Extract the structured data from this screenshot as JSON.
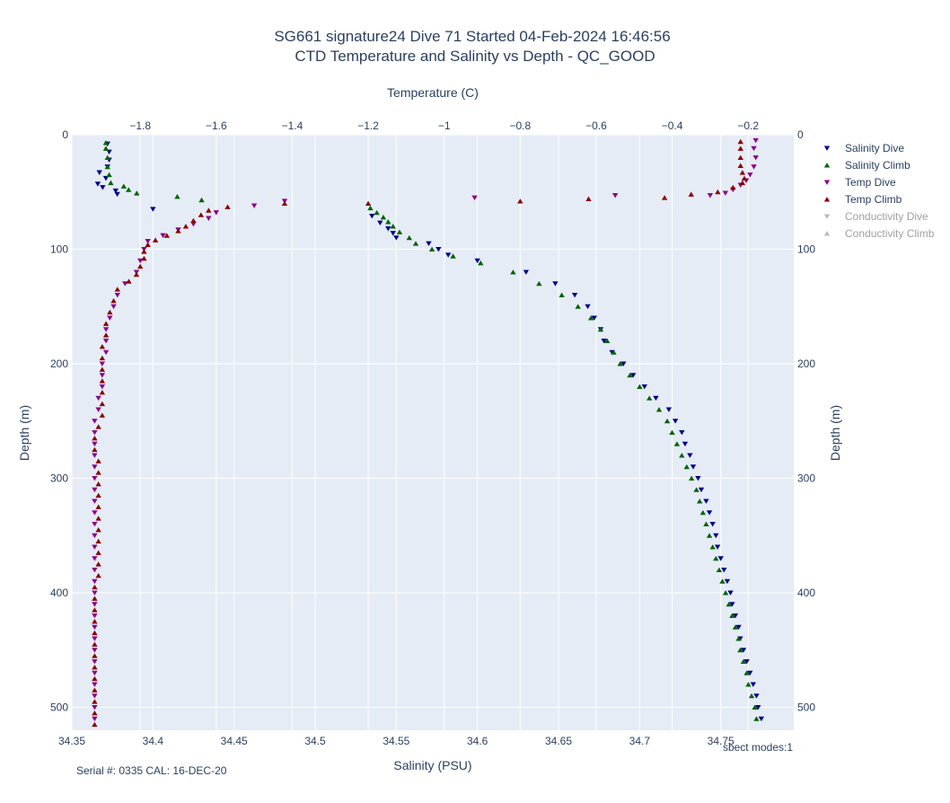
{
  "chart_data": {
    "type": "scatter",
    "title_line1": "SG661 signature24 Dive 71 Started 04-Feb-2024 16:46:56",
    "title_line2": "CTD Temperature and Salinity vs Depth - QC_GOOD",
    "xlabel_top": "Temperature (C)",
    "xlabel_bottom": "Salinity (PSU)",
    "ylabel_left": "Depth (m)",
    "ylabel_right": "Depth (m)",
    "xlim_bottom": [
      34.35,
      34.795
    ],
    "xlim_top": [
      -1.98,
      -0.08
    ],
    "ylim": [
      520,
      0
    ],
    "xticks_bottom": [
      "34.35",
      "34.4",
      "34.45",
      "34.5",
      "34.55",
      "34.6",
      "34.65",
      "34.7",
      "34.75"
    ],
    "xticks_top": [
      "−1.8",
      "−1.6",
      "−1.4",
      "−1.2",
      "−1",
      "−0.8",
      "−0.6",
      "−0.4",
      "−0.2"
    ],
    "yticks_left": [
      "0",
      "100",
      "200",
      "300",
      "400",
      "500"
    ],
    "yticks_right": [
      "0",
      "100",
      "200",
      "300",
      "400",
      "500"
    ],
    "grid": true,
    "legend_position": "right",
    "series": [
      {
        "name": "Salinity Dive",
        "axis": "salinity",
        "marker": "triangle-down",
        "color": "#00008b",
        "visible": true,
        "points": [
          [
            34.372,
            8
          ],
          [
            34.373,
            15
          ],
          [
            34.373,
            22
          ],
          [
            34.372,
            28
          ],
          [
            34.367,
            33
          ],
          [
            34.371,
            38
          ],
          [
            34.366,
            43
          ],
          [
            34.369,
            46
          ],
          [
            34.377,
            49
          ],
          [
            34.378,
            52
          ],
          [
            34.4,
            65
          ],
          [
            34.535,
            71
          ],
          [
            34.54,
            77
          ],
          [
            34.545,
            82
          ],
          [
            34.548,
            86
          ],
          [
            34.55,
            90
          ],
          [
            34.57,
            95
          ],
          [
            34.576,
            100
          ],
          [
            34.582,
            105
          ],
          [
            34.6,
            110
          ],
          [
            34.63,
            120
          ],
          [
            34.648,
            130
          ],
          [
            34.66,
            140
          ],
          [
            34.668,
            150
          ],
          [
            34.672,
            160
          ],
          [
            34.676,
            170
          ],
          [
            34.678,
            180
          ],
          [
            34.683,
            190
          ],
          [
            34.69,
            200
          ],
          [
            34.696,
            210
          ],
          [
            34.703,
            220
          ],
          [
            34.71,
            230
          ],
          [
            34.718,
            240
          ],
          [
            34.722,
            250
          ],
          [
            34.726,
            260
          ],
          [
            34.728,
            270
          ],
          [
            34.731,
            280
          ],
          [
            34.733,
            290
          ],
          [
            34.736,
            300
          ],
          [
            34.738,
            310
          ],
          [
            34.741,
            320
          ],
          [
            34.743,
            330
          ],
          [
            34.745,
            340
          ],
          [
            34.747,
            350
          ],
          [
            34.748,
            360
          ],
          [
            34.75,
            370
          ],
          [
            34.752,
            380
          ],
          [
            34.754,
            390
          ],
          [
            34.756,
            400
          ],
          [
            34.757,
            410
          ],
          [
            34.759,
            420
          ],
          [
            34.761,
            430
          ],
          [
            34.762,
            440
          ],
          [
            34.764,
            450
          ],
          [
            34.766,
            460
          ],
          [
            34.768,
            470
          ],
          [
            34.77,
            480
          ],
          [
            34.772,
            490
          ],
          [
            34.773,
            500
          ],
          [
            34.775,
            510
          ]
        ]
      },
      {
        "name": "Salinity Climb",
        "axis": "salinity",
        "marker": "triangle-up",
        "color": "#006400",
        "visible": true,
        "points": [
          [
            34.772,
            510
          ],
          [
            34.771,
            500
          ],
          [
            34.769,
            490
          ],
          [
            34.767,
            480
          ],
          [
            34.766,
            470
          ],
          [
            34.764,
            460
          ],
          [
            34.762,
            450
          ],
          [
            34.761,
            440
          ],
          [
            34.759,
            430
          ],
          [
            34.757,
            420
          ],
          [
            34.755,
            410
          ],
          [
            34.753,
            400
          ],
          [
            34.751,
            390
          ],
          [
            34.749,
            380
          ],
          [
            34.747,
            370
          ],
          [
            34.745,
            360
          ],
          [
            34.743,
            350
          ],
          [
            34.741,
            340
          ],
          [
            34.739,
            330
          ],
          [
            34.737,
            320
          ],
          [
            34.735,
            310
          ],
          [
            34.732,
            300
          ],
          [
            34.729,
            290
          ],
          [
            34.726,
            280
          ],
          [
            34.723,
            270
          ],
          [
            34.72,
            260
          ],
          [
            34.717,
            250
          ],
          [
            34.712,
            240
          ],
          [
            34.706,
            230
          ],
          [
            34.7,
            220
          ],
          [
            34.694,
            210
          ],
          [
            34.688,
            200
          ],
          [
            34.684,
            190
          ],
          [
            34.68,
            180
          ],
          [
            34.676,
            170
          ],
          [
            34.67,
            160
          ],
          [
            34.662,
            150
          ],
          [
            34.652,
            140
          ],
          [
            34.638,
            130
          ],
          [
            34.622,
            120
          ],
          [
            34.602,
            112
          ],
          [
            34.585,
            106
          ],
          [
            34.572,
            100
          ],
          [
            34.562,
            95
          ],
          [
            34.558,
            90
          ],
          [
            34.552,
            85
          ],
          [
            34.548,
            80
          ],
          [
            34.545,
            76
          ],
          [
            34.542,
            72
          ],
          [
            34.538,
            68
          ],
          [
            34.534,
            64
          ],
          [
            34.43,
            57
          ],
          [
            34.415,
            54
          ],
          [
            34.39,
            51
          ],
          [
            34.385,
            48
          ],
          [
            34.382,
            45
          ],
          [
            34.374,
            42
          ],
          [
            34.373,
            35
          ],
          [
            34.372,
            28
          ],
          [
            34.372,
            20
          ],
          [
            34.371,
            12
          ],
          [
            34.371,
            7
          ]
        ]
      },
      {
        "name": "Temp Dive",
        "axis": "temperature",
        "marker": "triangle-down",
        "color": "#8b008b",
        "visible": true,
        "points": [
          [
            -0.18,
            5
          ],
          [
            -0.185,
            12
          ],
          [
            -0.18,
            20
          ],
          [
            -0.185,
            28
          ],
          [
            -0.195,
            35
          ],
          [
            -0.205,
            40
          ],
          [
            -0.22,
            44
          ],
          [
            -0.24,
            48
          ],
          [
            -0.26,
            51
          ],
          [
            -0.3,
            53
          ],
          [
            -0.55,
            53
          ],
          [
            -0.92,
            55
          ],
          [
            -1.42,
            58
          ],
          [
            -1.5,
            62
          ],
          [
            -1.6,
            68
          ],
          [
            -1.62,
            73
          ],
          [
            -1.66,
            78
          ],
          [
            -1.7,
            83
          ],
          [
            -1.74,
            88
          ],
          [
            -1.78,
            93
          ],
          [
            -1.79,
            100
          ],
          [
            -1.8,
            110
          ],
          [
            -1.81,
            120
          ],
          [
            -1.84,
            130
          ],
          [
            -1.86,
            140
          ],
          [
            -1.87,
            150
          ],
          [
            -1.88,
            160
          ],
          [
            -1.89,
            170
          ],
          [
            -1.89,
            180
          ],
          [
            -1.89,
            190
          ],
          [
            -1.9,
            200
          ],
          [
            -1.9,
            210
          ],
          [
            -1.9,
            220
          ],
          [
            -1.91,
            230
          ],
          [
            -1.91,
            240
          ],
          [
            -1.92,
            250
          ],
          [
            -1.92,
            260
          ],
          [
            -1.92,
            270
          ],
          [
            -1.92,
            280
          ],
          [
            -1.92,
            290
          ],
          [
            -1.92,
            300
          ],
          [
            -1.92,
            310
          ],
          [
            -1.92,
            320
          ],
          [
            -1.92,
            330
          ],
          [
            -1.92,
            340
          ],
          [
            -1.92,
            350
          ],
          [
            -1.92,
            360
          ],
          [
            -1.92,
            370
          ],
          [
            -1.92,
            380
          ],
          [
            -1.92,
            390
          ],
          [
            -1.92,
            400
          ],
          [
            -1.92,
            410
          ],
          [
            -1.92,
            420
          ],
          [
            -1.92,
            430
          ],
          [
            -1.92,
            440
          ],
          [
            -1.92,
            450
          ],
          [
            -1.92,
            460
          ],
          [
            -1.92,
            470
          ],
          [
            -1.92,
            480
          ],
          [
            -1.92,
            490
          ],
          [
            -1.92,
            500
          ],
          [
            -1.92,
            510
          ]
        ]
      },
      {
        "name": "Temp Climb",
        "axis": "temperature",
        "marker": "triangle-up",
        "color": "#8b0000",
        "visible": true,
        "points": [
          [
            -1.92,
            515
          ],
          [
            -1.92,
            505
          ],
          [
            -1.92,
            495
          ],
          [
            -1.92,
            485
          ],
          [
            -1.92,
            475
          ],
          [
            -1.92,
            465
          ],
          [
            -1.92,
            455
          ],
          [
            -1.92,
            445
          ],
          [
            -1.92,
            435
          ],
          [
            -1.92,
            425
          ],
          [
            -1.92,
            415
          ],
          [
            -1.92,
            405
          ],
          [
            -1.92,
            395
          ],
          [
            -1.91,
            385
          ],
          [
            -1.91,
            375
          ],
          [
            -1.91,
            365
          ],
          [
            -1.91,
            355
          ],
          [
            -1.91,
            345
          ],
          [
            -1.91,
            335
          ],
          [
            -1.91,
            325
          ],
          [
            -1.91,
            315
          ],
          [
            -1.91,
            305
          ],
          [
            -1.91,
            295
          ],
          [
            -1.91,
            285
          ],
          [
            -1.92,
            275
          ],
          [
            -1.92,
            265
          ],
          [
            -1.91,
            255
          ],
          [
            -1.9,
            245
          ],
          [
            -1.9,
            235
          ],
          [
            -1.9,
            225
          ],
          [
            -1.9,
            215
          ],
          [
            -1.9,
            205
          ],
          [
            -1.9,
            195
          ],
          [
            -1.9,
            185
          ],
          [
            -1.89,
            175
          ],
          [
            -1.89,
            165
          ],
          [
            -1.88,
            155
          ],
          [
            -1.87,
            145
          ],
          [
            -1.86,
            135
          ],
          [
            -1.83,
            128
          ],
          [
            -1.81,
            122
          ],
          [
            -1.8,
            115
          ],
          [
            -1.79,
            108
          ],
          [
            -1.79,
            102
          ],
          [
            -1.78,
            96
          ],
          [
            -1.76,
            92
          ],
          [
            -1.73,
            88
          ],
          [
            -1.7,
            84
          ],
          [
            -1.68,
            80
          ],
          [
            -1.66,
            75
          ],
          [
            -1.64,
            70
          ],
          [
            -1.62,
            66
          ],
          [
            -1.57,
            63
          ],
          [
            -1.42,
            60
          ],
          [
            -1.2,
            60
          ],
          [
            -0.8,
            58
          ],
          [
            -0.62,
            56
          ],
          [
            -0.42,
            55
          ],
          [
            -0.35,
            52
          ],
          [
            -0.28,
            50
          ],
          [
            -0.24,
            46
          ],
          [
            -0.215,
            42
          ],
          [
            -0.21,
            38
          ],
          [
            -0.215,
            33
          ],
          [
            -0.22,
            27
          ],
          [
            -0.22,
            20
          ],
          [
            -0.22,
            12
          ],
          [
            -0.22,
            6
          ]
        ]
      },
      {
        "name": "Conductivity Dive",
        "axis": "conductivity",
        "marker": "triangle-down",
        "color": "#a0a0a0",
        "visible": false,
        "points": []
      },
      {
        "name": "Conductivity Climb",
        "axis": "conductivity",
        "marker": "triangle-up",
        "color": "#a0a0a0",
        "visible": false,
        "points": []
      }
    ]
  },
  "footer": {
    "serial": "Serial #: 0335  CAL: 16-DEC-20",
    "modes": "sbect modes:1"
  }
}
